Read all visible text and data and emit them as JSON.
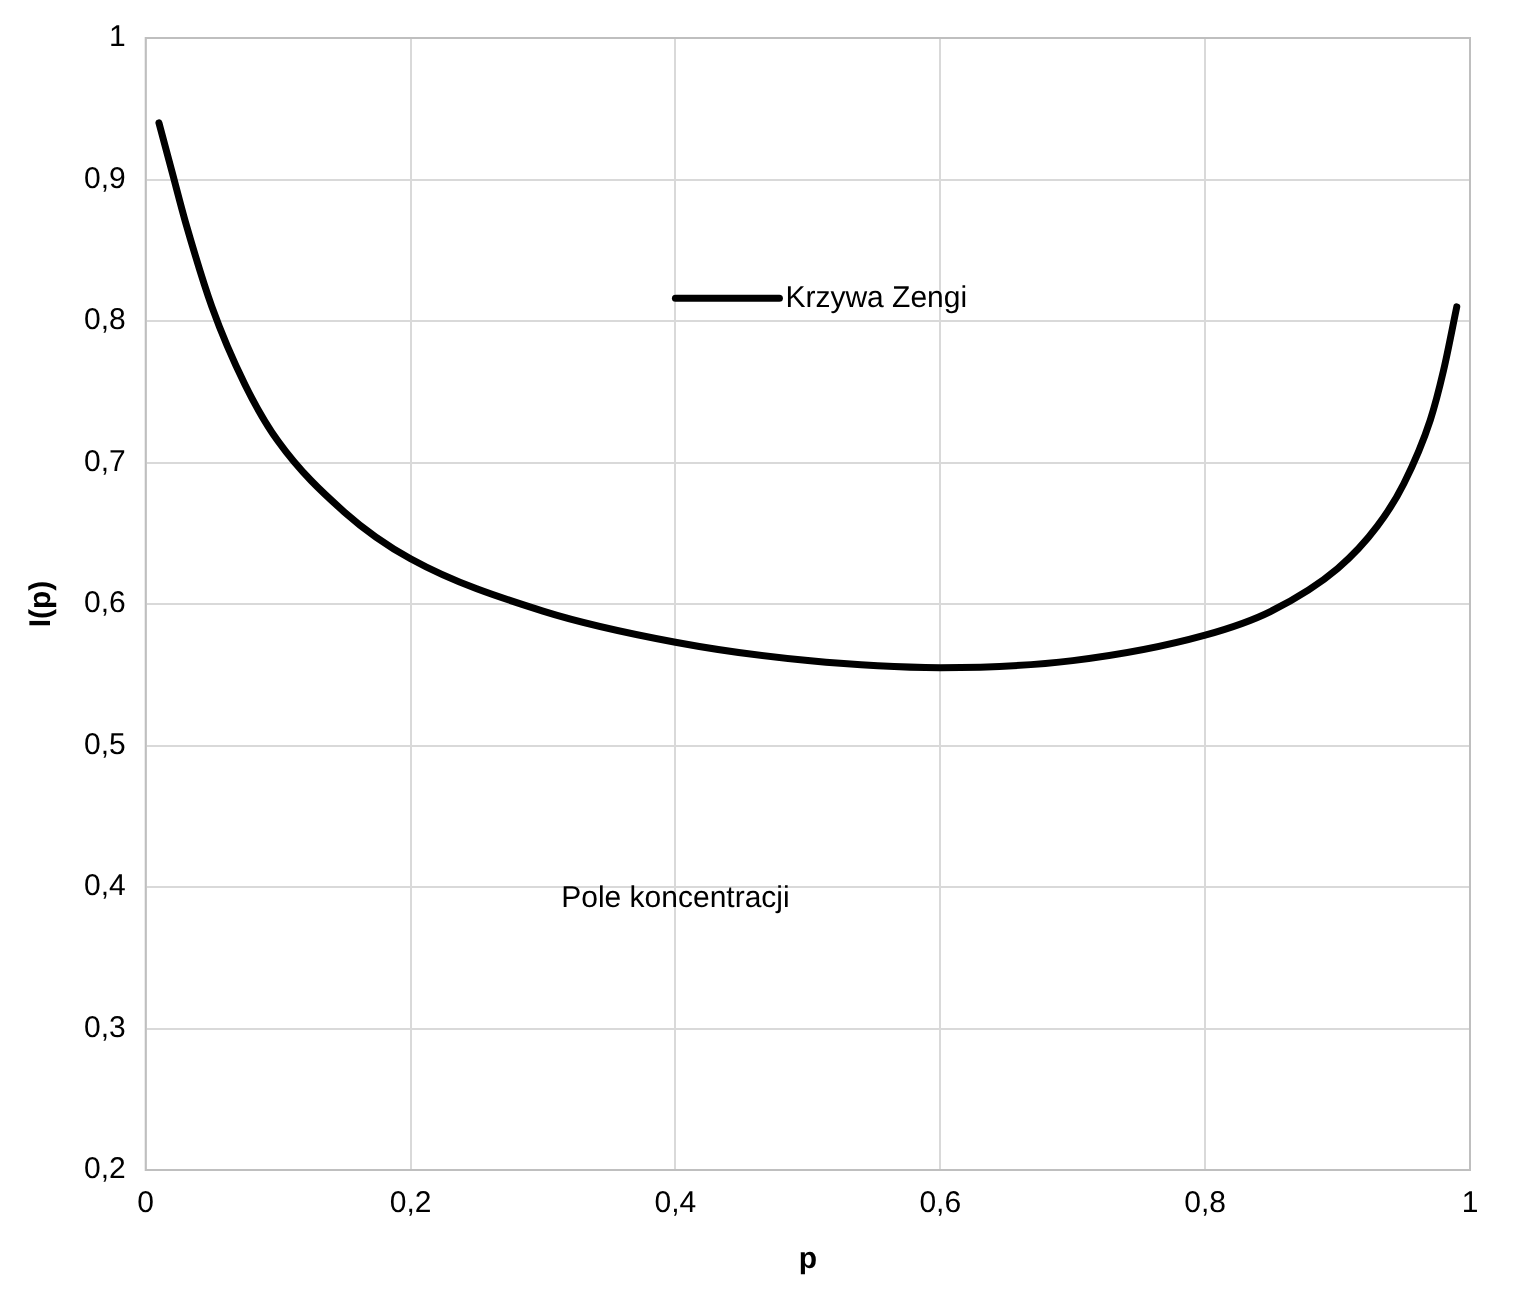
{
  "chart_data": {
    "type": "line",
    "xlabel": "p",
    "ylabel": "I(p)",
    "x": [
      0.01,
      0.02,
      0.03,
      0.05,
      0.075,
      0.1,
      0.15,
      0.2,
      0.3,
      0.4,
      0.5,
      0.6,
      0.7,
      0.8,
      0.85,
      0.9,
      0.93,
      0.95,
      0.97,
      0.98,
      0.99
    ],
    "series": [
      {
        "name": "Krzywa Zengi",
        "color": "#000000",
        "values": [
          0.94,
          0.905,
          0.87,
          0.81,
          0.755,
          0.715,
          0.665,
          0.632,
          0.595,
          0.573,
          0.56,
          0.555,
          0.56,
          0.578,
          0.595,
          0.625,
          0.655,
          0.685,
          0.73,
          0.765,
          0.81
        ]
      }
    ],
    "xlim": [
      0,
      1
    ],
    "xticks": [
      {
        "value": 0,
        "label": "0"
      },
      {
        "value": 0.2,
        "label": "0,2"
      },
      {
        "value": 0.4,
        "label": "0,4"
      },
      {
        "value": 0.6,
        "label": "0,6"
      },
      {
        "value": 0.8,
        "label": "0,8"
      },
      {
        "value": 1,
        "label": "1"
      }
    ],
    "ylim": [
      0.2,
      1
    ],
    "yticks": [
      {
        "value": 0.2,
        "label": "0,2"
      },
      {
        "value": 0.3,
        "label": "0,3"
      },
      {
        "value": 0.4,
        "label": "0,4"
      },
      {
        "value": 0.5,
        "label": "0,5"
      },
      {
        "value": 0.6,
        "label": "0,6"
      },
      {
        "value": 0.7,
        "label": "0,7"
      },
      {
        "value": 0.8,
        "label": "0,8"
      },
      {
        "value": 0.9,
        "label": "0,9"
      },
      {
        "value": 1,
        "label": "1"
      }
    ],
    "annotations": [
      "Pole koncentracji"
    ],
    "grid": true,
    "legend": "top",
    "marker": "none",
    "line_style": "solid"
  }
}
